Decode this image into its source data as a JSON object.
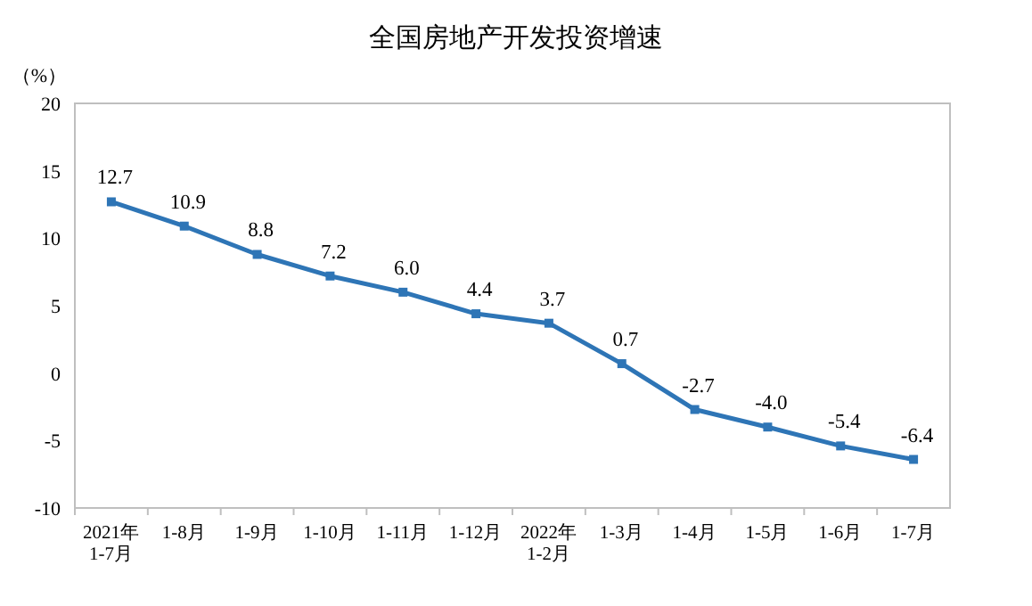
{
  "chart_data": {
    "type": "line",
    "title": "全国房地产开发投资增速",
    "ylabel": "（%）",
    "categories": [
      "2021年\n1-7月",
      "1-8月",
      "1-9月",
      "1-10月",
      "1-11月",
      "1-12月",
      "2022年\n1-2月",
      "1-3月",
      "1-4月",
      "1-5月",
      "1-6月",
      "1-7月"
    ],
    "values": [
      12.7,
      10.9,
      8.8,
      7.2,
      6.0,
      4.4,
      3.7,
      0.7,
      -2.7,
      -4.0,
      -5.4,
      -6.4
    ],
    "value_labels": [
      "12.7",
      "10.9",
      "8.8",
      "7.2",
      "6.0",
      "4.4",
      "3.7",
      "0.7",
      "-2.7",
      "-4.0",
      "-5.4",
      "-6.4"
    ],
    "color": "#2e75b6",
    "marker": "square",
    "line_style": "solid",
    "ylim": [
      -10,
      20
    ],
    "yticks": [
      -10,
      -5,
      0,
      5,
      10,
      15,
      20
    ]
  }
}
